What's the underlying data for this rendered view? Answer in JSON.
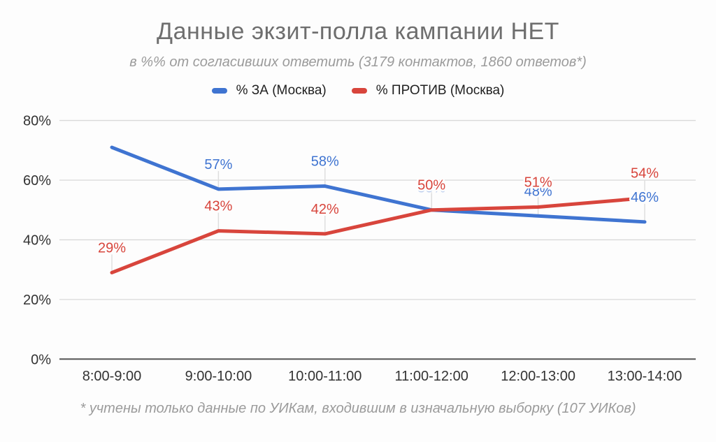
{
  "chart_data": {
    "type": "line",
    "title": "Данные экзит-полла кампании НЕТ",
    "subtitle": "в %% от согласивших ответить (3179 контактов, 1860 ответов*)",
    "footnote": "* учтены только данные по УИКам, входившим в изначальную выборку (107 УИКов)",
    "legend_position": "top",
    "grid": true,
    "categories": [
      "8:00-9:00",
      "9:00-10:00",
      "10:00-11:00",
      "11:00-12:00",
      "12:00-13:00",
      "13:00-14:00"
    ],
    "xlabel": "",
    "ylabel": "",
    "ylim": [
      0,
      80
    ],
    "y_tick_values": [
      0,
      20,
      40,
      60,
      80
    ],
    "y_tick_labels": [
      "0%",
      "20%",
      "40%",
      "60%",
      "80%"
    ],
    "series": [
      {
        "name": "% ЗА (Москва)",
        "color": "#3f74d1",
        "values": [
          71,
          57,
          58,
          50,
          48,
          46
        ],
        "point_labels": [
          "",
          "57%",
          "58%",
          "50%",
          "48%",
          "46%"
        ],
        "label_opacity": [
          0,
          1,
          1,
          0.35,
          1,
          1
        ]
      },
      {
        "name": "% ПРОТИВ (Москва)",
        "color": "#d8453c",
        "values": [
          29,
          43,
          42,
          50,
          51,
          54
        ],
        "point_labels": [
          "29%",
          "43%",
          "42%",
          "50%",
          "51%",
          "54%"
        ],
        "label_opacity": [
          1,
          1,
          1,
          1,
          1,
          1
        ]
      }
    ],
    "colors": {
      "gridline": "#d9d9d9",
      "zero_axis": "#555555",
      "axis_text": "#333333",
      "leader_line": "#dddddd"
    }
  }
}
